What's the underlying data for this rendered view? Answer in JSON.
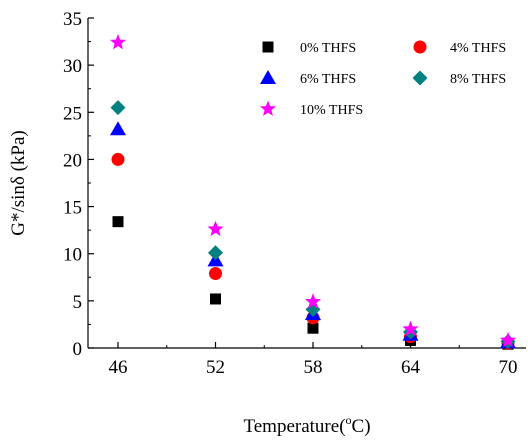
{
  "chart_data": {
    "type": "scatter",
    "xlabel": "Temperature(°C)",
    "xlabel_parts": {
      "pre": "Temperature(",
      "sup": "o",
      "post": "C)"
    },
    "ylabel": "G*/sinδ (kPa)",
    "x": [
      46,
      52,
      58,
      64,
      70
    ],
    "x_ticks": [
      "46",
      "52",
      "58",
      "64",
      "70"
    ],
    "ylim": [
      0,
      35
    ],
    "y_ticks": [
      "0",
      "5",
      "10",
      "15",
      "20",
      "25",
      "30",
      "35"
    ],
    "grid": false,
    "legend_position": "top-right",
    "series": [
      {
        "name": "0% THFS",
        "marker": "square",
        "color": "#000000",
        "values": [
          13.4,
          5.2,
          2.1,
          0.8,
          0.4
        ]
      },
      {
        "name": "4% THFS",
        "marker": "circle",
        "color": "#ff0000",
        "values": [
          20.0,
          7.9,
          3.2,
          1.2,
          0.5
        ]
      },
      {
        "name": "6% THFS",
        "marker": "triangle",
        "color": "#0000ff",
        "values": [
          23.2,
          9.3,
          3.6,
          1.4,
          0.6
        ]
      },
      {
        "name": "8% THFS",
        "marker": "diamond",
        "color": "#008080",
        "values": [
          25.5,
          10.1,
          4.1,
          1.7,
          0.7
        ]
      },
      {
        "name": "10% THFS",
        "marker": "star",
        "color": "#ff00ff",
        "values": [
          32.4,
          12.6,
          4.9,
          2.0,
          0.8
        ]
      }
    ]
  }
}
